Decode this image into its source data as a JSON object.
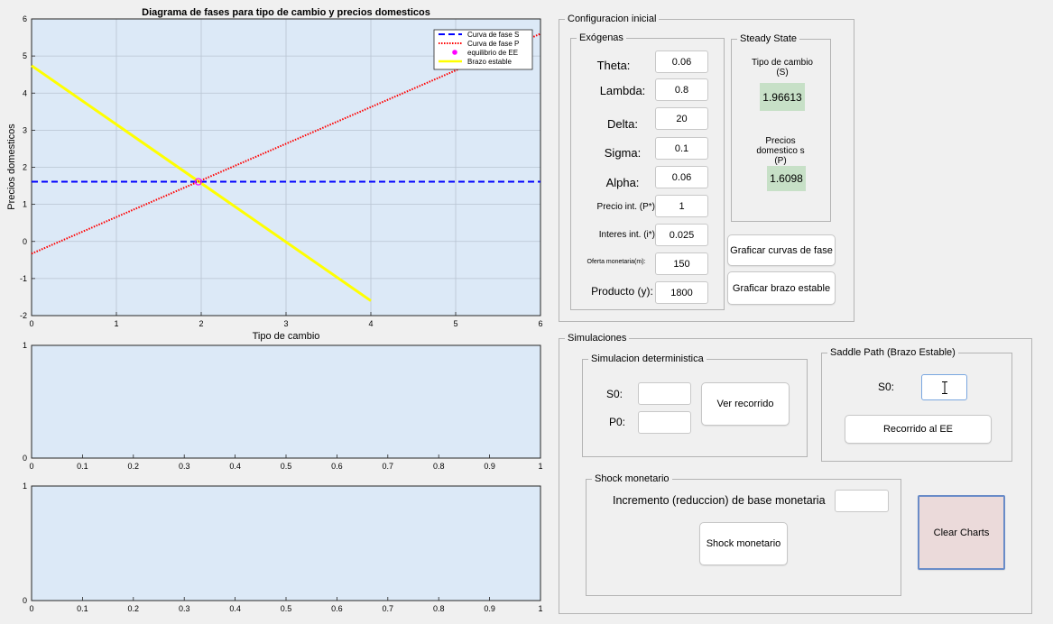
{
  "chart_data": [
    {
      "type": "line",
      "title": "Diagrama de fases para tipo de cambio y precios domesticos",
      "xlabel": "Tipo de cambio",
      "ylabel": "Precios domesticos",
      "xlim": [
        0,
        6
      ],
      "ylim": [
        -2,
        6
      ],
      "xticks": [
        "0",
        "1",
        "2",
        "3",
        "4",
        "5",
        "6"
      ],
      "yticks": [
        "-2",
        "-1",
        "0",
        "1",
        "2",
        "3",
        "4",
        "5",
        "6"
      ],
      "grid": true,
      "legend_position": "top-right",
      "series": [
        {
          "name": "Curva de fase S",
          "style": "dashed",
          "color": "#0000ff",
          "x": [
            0,
            6
          ],
          "y": [
            1.61,
            1.61
          ]
        },
        {
          "name": "Curva de fase P",
          "style": "dotted",
          "color": "#ff0000",
          "x": [
            0,
            6
          ],
          "y": [
            -0.33,
            5.6
          ]
        },
        {
          "name": "equilibrio de EE",
          "style": "marker",
          "color": "#ff00ff",
          "x": [
            1.966
          ],
          "y": [
            1.61
          ]
        },
        {
          "name": "Brazo estable",
          "style": "solid",
          "color": "#ffff00",
          "x": [
            0,
            4
          ],
          "y": [
            4.74,
            -1.6
          ]
        }
      ]
    },
    {
      "type": "line",
      "title": "",
      "xlabel": "",
      "ylabel": "",
      "xlim": [
        0,
        1
      ],
      "ylim": [
        0,
        1
      ],
      "xticks": [
        "0",
        "0.1",
        "0.2",
        "0.3",
        "0.4",
        "0.5",
        "0.6",
        "0.7",
        "0.8",
        "0.9",
        "1"
      ],
      "yticks": [
        "0",
        "1"
      ],
      "grid": false,
      "series": []
    },
    {
      "type": "line",
      "title": "",
      "xlabel": "",
      "ylabel": "",
      "xlim": [
        0,
        1
      ],
      "ylim": [
        0,
        1
      ],
      "xticks": [
        "0",
        "0.1",
        "0.2",
        "0.3",
        "0.4",
        "0.5",
        "0.6",
        "0.7",
        "0.8",
        "0.9",
        "1"
      ],
      "yticks": [
        "0",
        "1"
      ],
      "grid": false,
      "series": []
    }
  ],
  "colors": {
    "axes_bg": "#dce9f7",
    "steady_bg": "#c7e0c7",
    "clear_bg": "#ebdada",
    "clear_border": "#6a8cc8"
  },
  "config": {
    "title": "Configuracion inicial",
    "exogenas": {
      "title": "Exógenas",
      "params": [
        {
          "label": "Theta:",
          "value": "0.06"
        },
        {
          "label": "Lambda:",
          "value": "0.8"
        },
        {
          "label": "Delta:",
          "value": "20"
        },
        {
          "label": "Sigma:",
          "value": "0.1"
        },
        {
          "label": "Alpha:",
          "value": "0.06"
        },
        {
          "label": "Precio int. (P*)",
          "value": "1"
        },
        {
          "label": "Interes int. (i*)",
          "value": "0.025"
        },
        {
          "label": "Oferta monetaria(m):",
          "value": "150"
        },
        {
          "label": "Producto (y):",
          "value": "1800"
        }
      ]
    },
    "steady": {
      "title": "Steady State",
      "s_label": "Tipo de cambio (S)",
      "s_value": "1.96613",
      "p_label": "Precios domestico s (P)",
      "p_value": "1.6098"
    },
    "btn_curvas": "Graficar curvas de fase",
    "btn_brazo": "Graficar brazo estable"
  },
  "sim": {
    "title": "Simulaciones",
    "det": {
      "title": "Simulacion deterministica",
      "s0_label": "S0:",
      "p0_label": "P0:",
      "button": "Ver recorrido"
    },
    "saddle": {
      "title": "Saddle Path (Brazo Estable)",
      "s0_label": "S0:",
      "button": "Recorrido al EE"
    },
    "shock": {
      "title": "Shock monetario",
      "label": "Incremento (reduccion) de base monetaria",
      "button": "Shock monetario"
    },
    "clear_button": "Clear Charts"
  }
}
